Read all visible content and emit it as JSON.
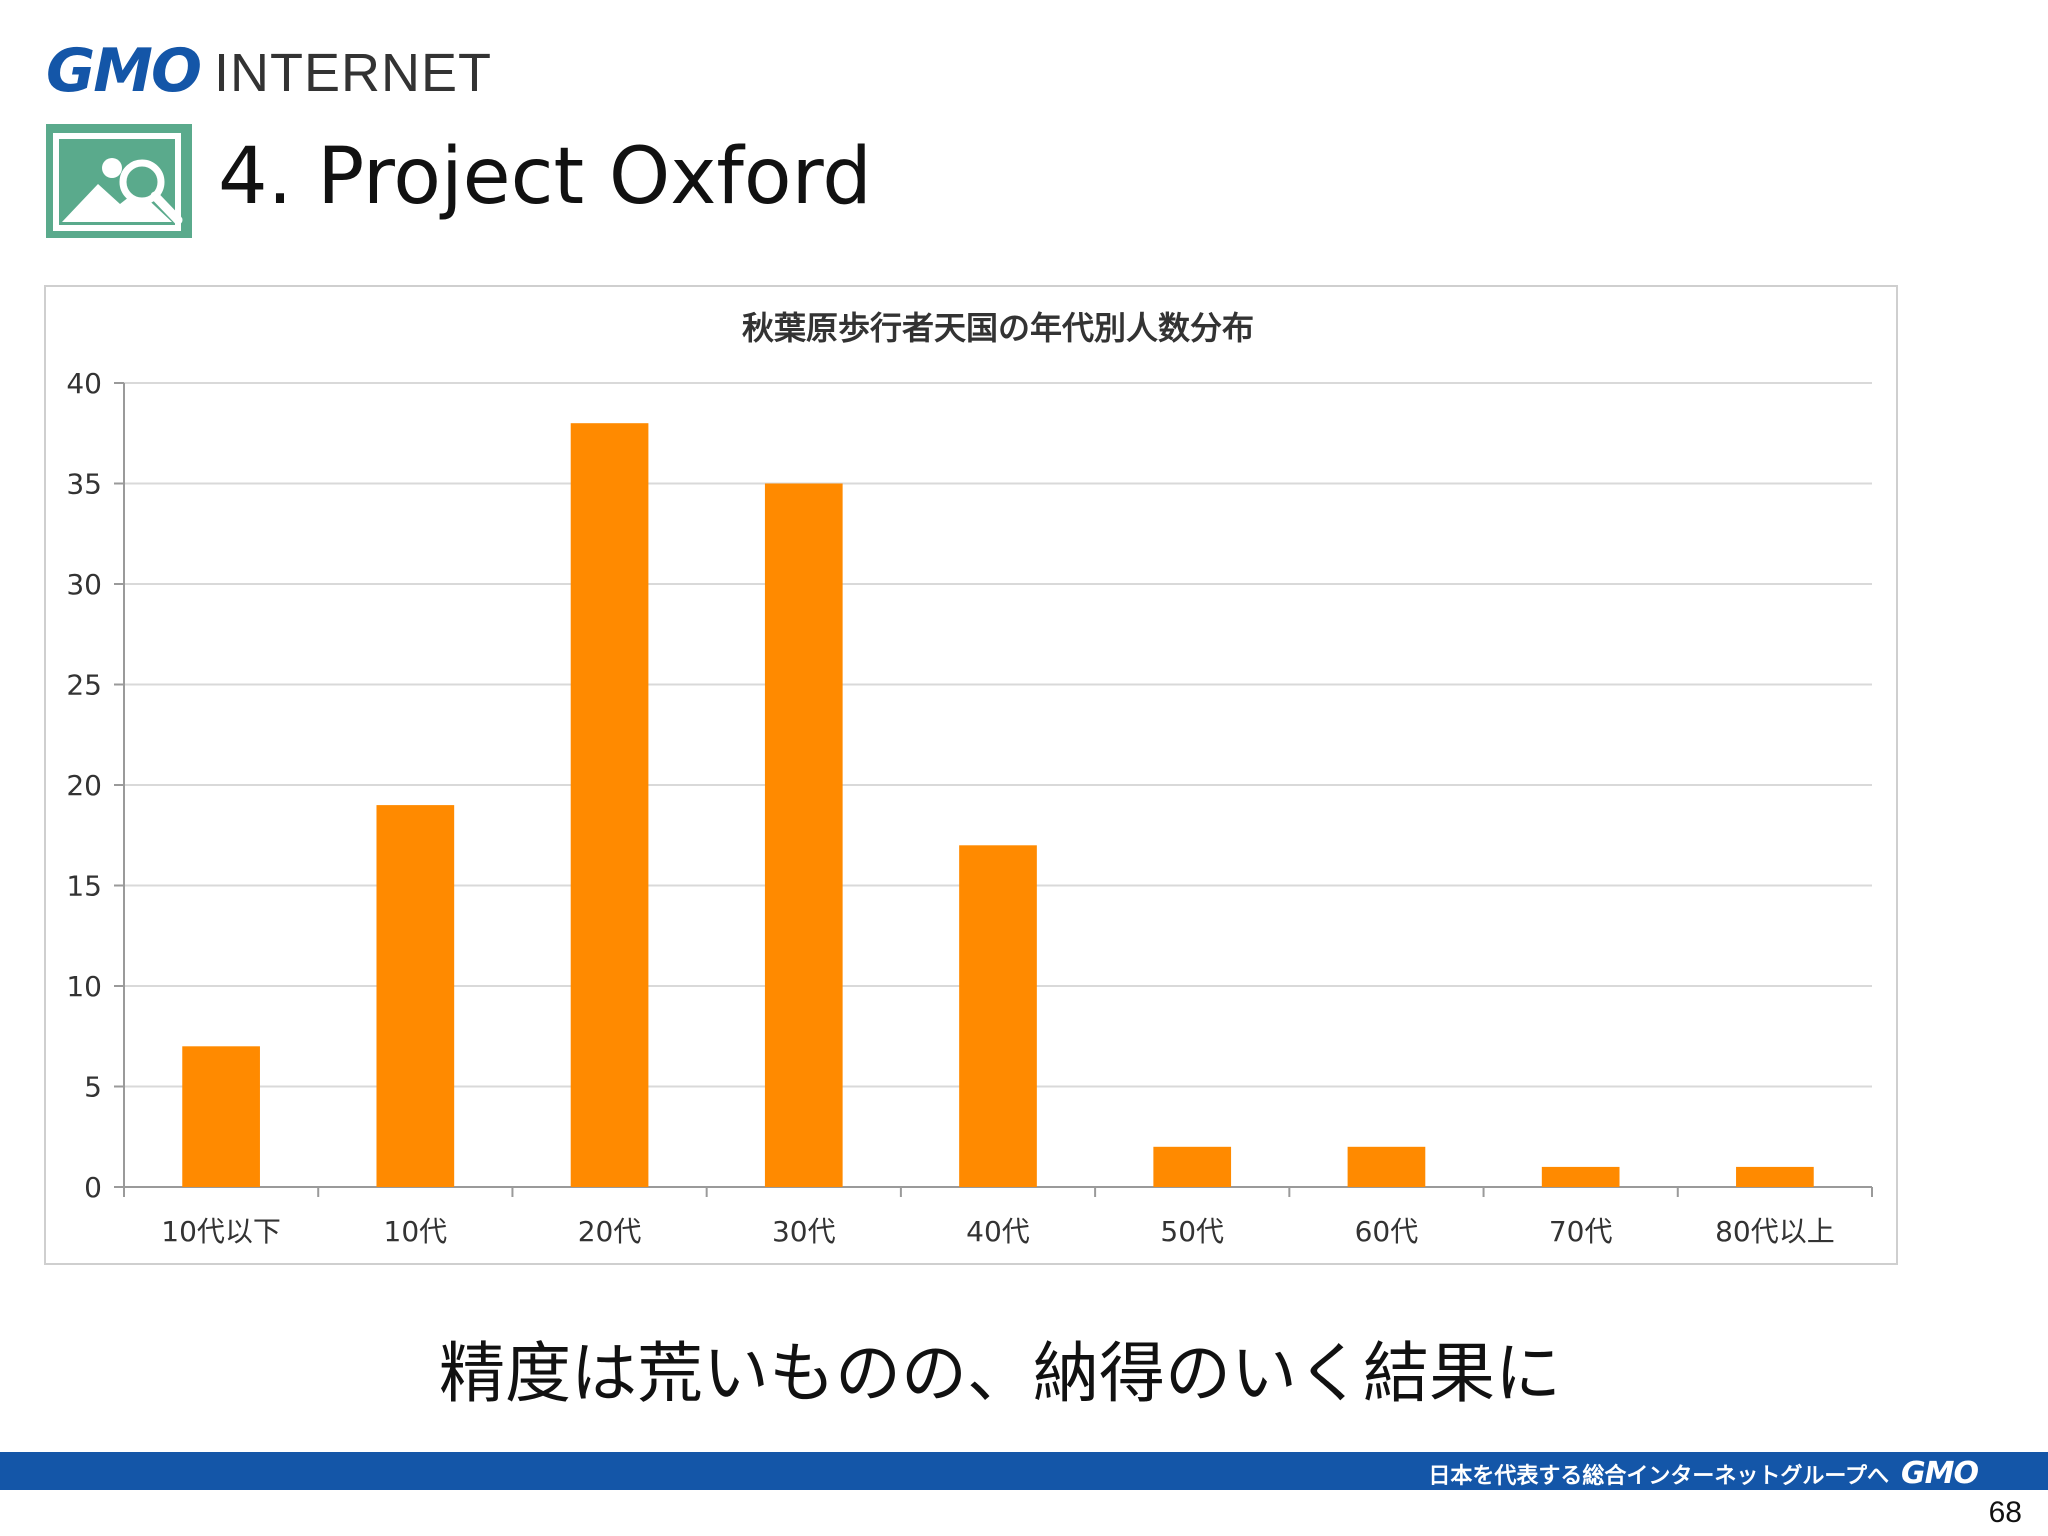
{
  "header": {
    "logo_gmo": "GMO",
    "logo_internet": "INTERNET",
    "title": "4. Project Oxford",
    "icon": "image-search-icon"
  },
  "chart_data": {
    "type": "bar",
    "title": "秋葉原歩行者天国の年代別人数分布",
    "xlabel": "",
    "ylabel": "",
    "categories": [
      "10代以下",
      "10代",
      "20代",
      "30代",
      "40代",
      "50代",
      "60代",
      "70代",
      "80代以上"
    ],
    "values": [
      7,
      19,
      38,
      35,
      17,
      2,
      2,
      1,
      1
    ],
    "ylim": [
      0,
      40
    ],
    "yticks": [
      0,
      5,
      10,
      15,
      20,
      25,
      30,
      35,
      40
    ],
    "grid": true,
    "legend": "none",
    "bar_color": "#ff8a00"
  },
  "caption": "精度は荒いものの、納得のいく結果に",
  "footer": {
    "slogan": "日本を代表する総合インターネットグループへ",
    "logo": "GMO",
    "bar_color": "#1456a8"
  },
  "page_number": "68"
}
